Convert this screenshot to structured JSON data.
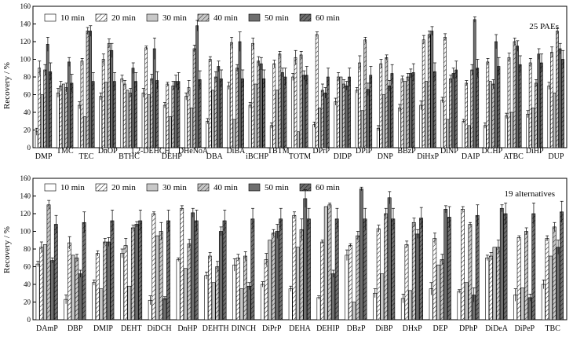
{
  "series_names": [
    "10 min",
    "20 min",
    "30 min",
    "40 min",
    "50 min",
    "60 min"
  ],
  "series_styles": [
    {
      "fill": "#ffffff",
      "pattern": "none"
    },
    {
      "fill": "#ffffff",
      "pattern": "hatch-white"
    },
    {
      "fill": "#c8c8c8",
      "pattern": "none"
    },
    {
      "fill": "#c8c8c8",
      "pattern": "hatch-gray"
    },
    {
      "fill": "#6e6e6e",
      "pattern": "none"
    },
    {
      "fill": "#6e6e6e",
      "pattern": "hatch-dark"
    }
  ],
  "chart_data": [
    {
      "type": "bar",
      "panel": "top",
      "annotation": "25 PAEs",
      "ylabel": "Recovery / %",
      "ylim": [
        0,
        160
      ],
      "yticks": [
        0,
        20,
        40,
        60,
        80,
        100,
        120,
        140,
        160
      ],
      "categories": [
        "DMP",
        "TMC",
        "TEC",
        "DnOP",
        "BTHC",
        "1,2-DEHCH",
        "DEHP",
        "DHeNoA",
        "DBA",
        "DiBA",
        "iBCHP",
        "TBTM",
        "TOTM",
        "DPrP",
        "DIDP",
        "DPiP",
        "DNP",
        "BBzP",
        "DiHxP",
        "DiNP",
        "DAIP",
        "DCHP",
        "ATBC",
        "DiHP",
        "DUP"
      ],
      "series": [
        {
          "name": "10 min",
          "values": [
            18,
            62,
            48,
            58,
            78,
            62,
            48,
            58,
            30,
            70,
            48,
            25,
            80,
            26,
            52,
            65,
            22,
            45,
            48,
            54,
            30,
            25,
            36,
            38,
            70
          ],
          "errors": [
            4,
            5,
            4,
            4,
            4,
            5,
            3,
            4,
            3,
            4,
            3,
            3,
            4,
            3,
            4,
            3,
            3,
            4,
            5,
            3,
            2,
            3,
            3,
            4,
            4
          ]
        },
        {
          "name": "20 min",
          "values": [
            90,
            70,
            98,
            100,
            72,
            113,
            72,
            68,
            100,
            119,
            118,
            95,
            102,
            128,
            80,
            96,
            95,
            78,
            122,
            125,
            73,
            97,
            102,
            96,
            108
          ],
          "errors": [
            8,
            5,
            3,
            6,
            4,
            2,
            2,
            8,
            3,
            6,
            6,
            4,
            8,
            3,
            5,
            8,
            5,
            3,
            5,
            4,
            3,
            4,
            5,
            5,
            6
          ]
        },
        {
          "name": "30 min",
          "values": [
            60,
            72,
            35,
            74,
            65,
            60,
            35,
            45,
            65,
            32,
            72,
            65,
            18,
            45,
            80,
            42,
            60,
            75,
            75,
            32,
            25,
            75,
            40,
            45,
            62
          ]
        },
        {
          "name": "40 min",
          "values": [
            88,
            68,
            132,
            118,
            62,
            78,
            70,
            112,
            80,
            90,
            98,
            106,
            105,
            65,
            72,
            122,
            102,
            80,
            128,
            78,
            88,
            72,
            120,
            73,
            132
          ],
          "errors": [
            6,
            5,
            4,
            5,
            5,
            5,
            5,
            4,
            6,
            4,
            5,
            3,
            4,
            7,
            5,
            3,
            3,
            4,
            4,
            4,
            6,
            5,
            4,
            4,
            3
          ]
        },
        {
          "name": "50 min",
          "values": [
            117,
            97,
            132,
            110,
            90,
            112,
            75,
            138,
            92,
            120,
            95,
            85,
            82,
            62,
            70,
            66,
            70,
            84,
            132,
            84,
            145,
            120,
            115,
            106,
            112
          ],
          "errors": [
            8,
            5,
            6,
            8,
            6,
            12,
            7,
            6,
            6,
            11,
            7,
            5,
            5,
            6,
            5,
            7,
            6,
            5,
            5,
            6,
            3,
            8,
            6,
            6,
            6
          ]
        },
        {
          "name": "60 min",
          "values": [
            86,
            73,
            75,
            75,
            75,
            76,
            75,
            77,
            78,
            78,
            78,
            80,
            82,
            80,
            80,
            82,
            84,
            85,
            86,
            88,
            90,
            92,
            94,
            96,
            100
          ],
          "errors": [
            10,
            10,
            10,
            10,
            10,
            10,
            10,
            10,
            10,
            10,
            10,
            10,
            10,
            10,
            10,
            10,
            10,
            10,
            10,
            10,
            10,
            10,
            10,
            10,
            10
          ]
        }
      ]
    },
    {
      "type": "bar",
      "panel": "bottom",
      "annotation": "19 alternatives",
      "ylabel": "Recovery / %",
      "ylim": [
        0,
        160
      ],
      "yticks": [
        0,
        20,
        40,
        60,
        80,
        100,
        120,
        140,
        160
      ],
      "categories": [
        "DAmP",
        "DBP",
        "DMIP",
        "DEHT",
        "DiDCH",
        "DnHP",
        "DEHTH",
        "DINCH",
        "DiPrP",
        "DEHA",
        "DEHIP",
        "DBzP",
        "DiBP",
        "DHxP",
        "DEP",
        "DPhP",
        "DiDeA",
        "DiPeP",
        "TBC"
      ],
      "series": [
        {
          "name": "10 min",
          "values": [
            63,
            23,
            42,
            75,
            22,
            68,
            50,
            62,
            40,
            35,
            25,
            73,
            30,
            24,
            35,
            32,
            70,
            28,
            40
          ],
          "errors": [
            3,
            5,
            3,
            5,
            5,
            2,
            4,
            7,
            3,
            3,
            2,
            6,
            5,
            5,
            7,
            2,
            3,
            7,
            5
          ]
        },
        {
          "name": "20 min",
          "values": [
            82,
            87,
            75,
            84,
            120,
            126,
            72,
            70,
            68,
            118,
            88,
            84,
            103,
            85,
            92,
            125,
            72,
            93,
            92
          ],
          "errors": [
            6,
            7,
            3,
            8,
            2,
            3,
            4,
            4,
            7,
            4,
            2,
            2,
            4,
            4,
            6,
            3,
            4,
            2,
            3
          ]
        },
        {
          "name": "30 min",
          "values": [
            85,
            73,
            35,
            38,
            95,
            58,
            42,
            35,
            90,
            82,
            128,
            20,
            52,
            33,
            62,
            42,
            82,
            36,
            72
          ]
        },
        {
          "name": "40 min",
          "values": [
            130,
            70,
            88,
            104,
            100,
            86,
            60,
            72,
            98,
            102,
            130,
            95,
            120,
            110,
            68,
            108,
            82,
            100,
            105
          ],
          "errors": [
            5,
            4,
            4,
            3,
            10,
            5,
            6,
            5,
            4,
            12,
            2,
            5,
            6,
            5,
            6,
            2,
            8,
            4,
            5
          ]
        },
        {
          "name": "50 min",
          "values": [
            67,
            52,
            88,
            108,
            24,
            121,
            100,
            38,
            100,
            137,
            52,
            148,
            138,
            97,
            125,
            28,
            126,
            25,
            82
          ],
          "errors": [
            3,
            4,
            5,
            3,
            2,
            5,
            5,
            4,
            8,
            10,
            4,
            2,
            7,
            5,
            4,
            8,
            4,
            4,
            8
          ]
        },
        {
          "name": "60 min",
          "values": [
            108,
            110,
            112,
            112,
            112,
            112,
            112,
            114,
            114,
            114,
            114,
            114,
            114,
            115,
            116,
            118,
            120,
            120,
            122
          ],
          "errors": [
            10,
            12,
            12,
            12,
            12,
            12,
            12,
            12,
            12,
            12,
            12,
            12,
            12,
            12,
            12,
            12,
            12,
            12,
            12
          ]
        }
      ]
    }
  ]
}
